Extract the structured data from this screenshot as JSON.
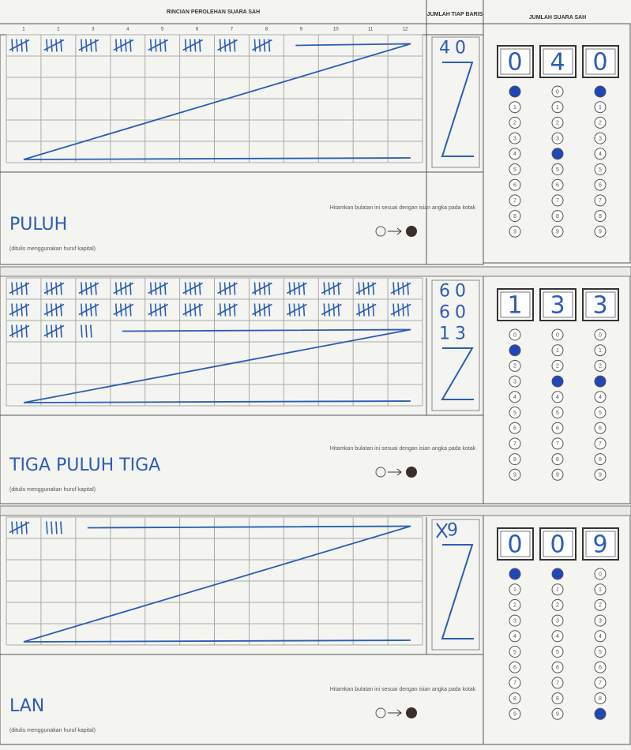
{
  "header": {
    "detail_title": "RINCIAN PEROLEHAN SUARA SAH",
    "row_total_title": "JUMLAH TIAP BARIS",
    "total_title": "JUMLAH SUARA SAH",
    "columns": [
      "1",
      "2",
      "3",
      "4",
      "5",
      "6",
      "7",
      "8",
      "9",
      "10",
      "11",
      "12"
    ]
  },
  "bubble_labels": [
    "0",
    "1",
    "2",
    "3",
    "4",
    "5",
    "6",
    "7",
    "8",
    "9"
  ],
  "sections": [
    {
      "tallies": [
        [
          5,
          5,
          5,
          5,
          5,
          5,
          5,
          5
        ]
      ],
      "row_totals": [
        "40"
      ],
      "total_digits": [
        "0",
        "4",
        "0"
      ],
      "words": "PULUH",
      "instruction": "Hitamkan bulatan ini sesuai dengan isian angka pada kotak",
      "note": "(ditulis menggunakan huruf kapital)"
    },
    {
      "tallies": [
        [
          5,
          5,
          5,
          5,
          5,
          5,
          5,
          5,
          5,
          5,
          5,
          5
        ],
        [
          5,
          5,
          5,
          5,
          5,
          5,
          5,
          5,
          5,
          5,
          5,
          5
        ],
        [
          5,
          5,
          3
        ]
      ],
      "row_totals": [
        "60",
        "60",
        "13"
      ],
      "total_digits": [
        "1",
        "3",
        "3"
      ],
      "words": "TIGA PULUH TIGA",
      "instruction": "Hitamkan bulatan ini sesuai dengan isian angka pada kotak",
      "note": "(ditulis menggunakan huruf kapital)"
    },
    {
      "tallies": [
        [
          5,
          4
        ]
      ],
      "row_totals": [
        "9"
      ],
      "total_digits": [
        "0",
        "0",
        "9"
      ],
      "words": "LAN",
      "instruction": "Hitamkan bulatan ini sesuai dengan isian angka pada kotak",
      "note": "(ditulis menggunakan huruf kapital)"
    }
  ]
}
